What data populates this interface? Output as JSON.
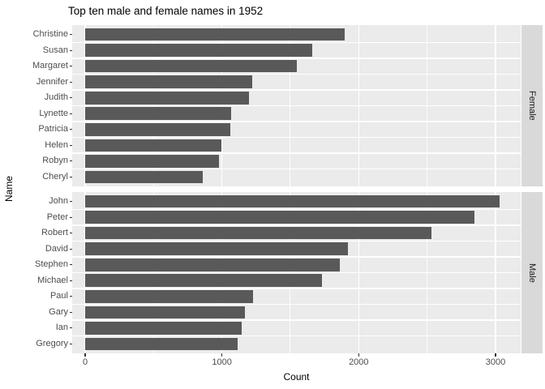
{
  "chart_data": {
    "type": "bar",
    "orientation": "horizontal",
    "title": "Top ten male and female names in 1952",
    "xlabel": "Count",
    "ylabel": "Name",
    "xlim": [
      -95,
      3185
    ],
    "x_ticks": [
      0,
      1000,
      2000,
      3000
    ],
    "x_tick_labels": [
      "0",
      "1000",
      "2000",
      "3000"
    ],
    "x_minor_ticks": [
      500,
      1500,
      2500
    ],
    "grid": true,
    "legend": "none",
    "facets": [
      {
        "label": "Female",
        "categories": [
          "Christine",
          "Susan",
          "Margaret",
          "Jennifer",
          "Judith",
          "Lynette",
          "Patricia",
          "Helen",
          "Robyn",
          "Cheryl"
        ],
        "values": [
          1900,
          1660,
          1550,
          1220,
          1195,
          1065,
          1060,
          995,
          980,
          860
        ]
      },
      {
        "label": "Male",
        "categories": [
          "John",
          "Peter",
          "Robert",
          "David",
          "Stephen",
          "Michael",
          "Paul",
          "Gary",
          "Ian",
          "Gregory"
        ],
        "values": [
          3030,
          2845,
          2530,
          1920,
          1860,
          1730,
          1225,
          1170,
          1145,
          1115
        ]
      }
    ],
    "colors": {
      "bar": "#595959",
      "panel_background": "#EBEBEB",
      "strip_background": "#D9D9D9",
      "gridline": "#FFFFFF",
      "tick_text": "#4d4d4d",
      "axis_title": "#000000",
      "title": "#000000",
      "strip_text": "#1a1a1a"
    }
  }
}
